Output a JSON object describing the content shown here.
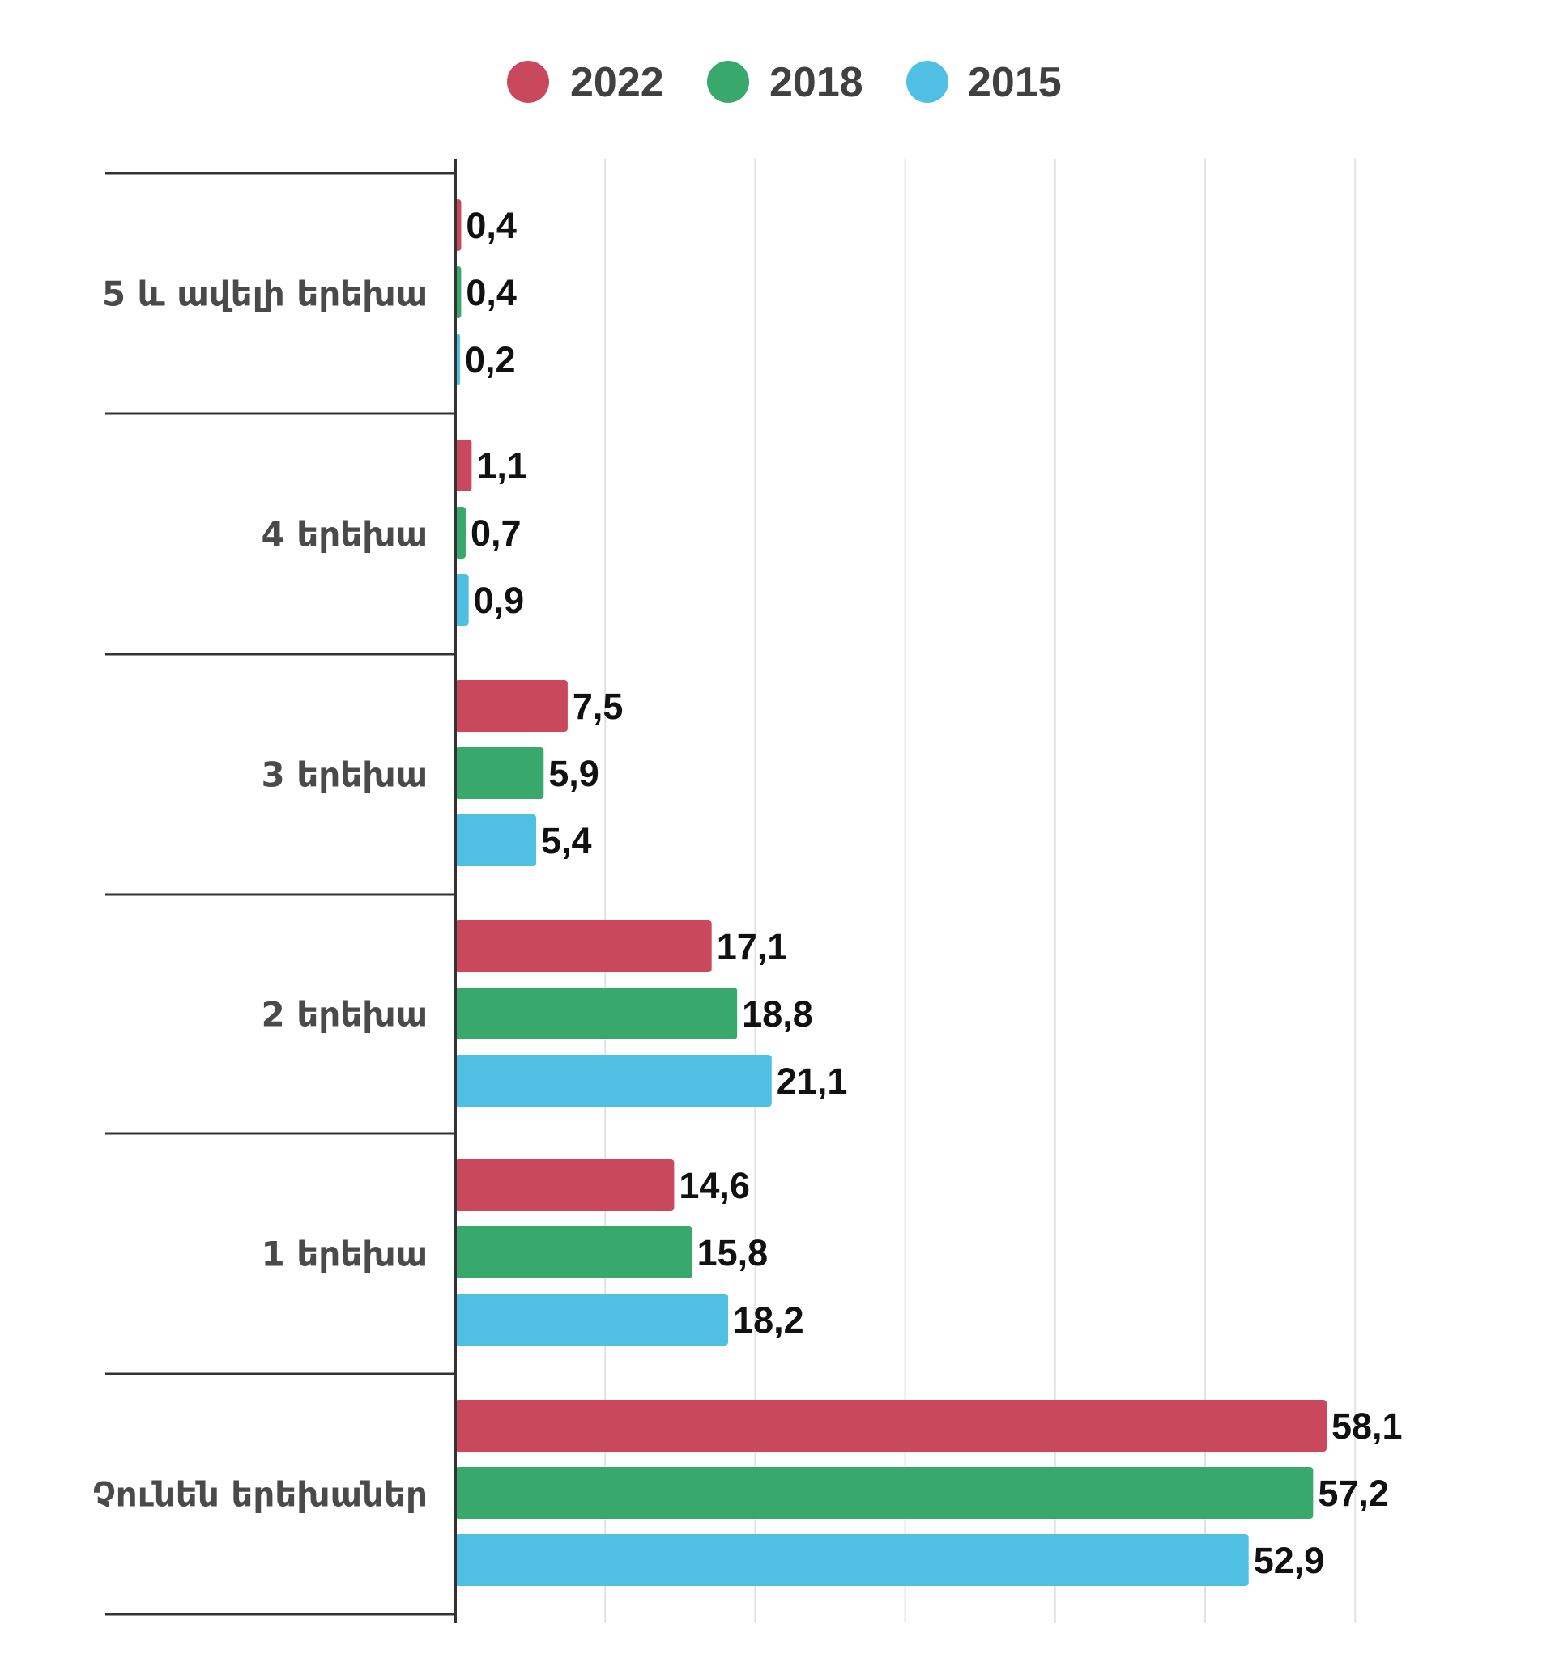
{
  "chart_data": {
    "type": "bar",
    "orientation": "horizontal",
    "title": "",
    "xlabel": "",
    "ylabel": "",
    "xlim": [
      0,
      60
    ],
    "grid": true,
    "legend_position": "top-center",
    "categories": [
      "5 և ավելի երեխա",
      "4 երեխա",
      "3 երեխա",
      "2 երեխա",
      "1 երեխա",
      "Չունեն երեխաներ"
    ],
    "series": [
      {
        "name": "2022",
        "color": "#c9485b",
        "values": [
          0.4,
          1.1,
          7.5,
          17.1,
          14.6,
          58.1
        ],
        "labels": [
          "0,4",
          "1,1",
          "7,5",
          "17,1",
          "14,6",
          "58,1"
        ]
      },
      {
        "name": "2018",
        "color": "#38a86c",
        "values": [
          0.4,
          0.7,
          5.9,
          18.8,
          15.8,
          57.2
        ],
        "labels": [
          "0,4",
          "0,7",
          "5,9",
          "18,8",
          "15,8",
          "57,2"
        ]
      },
      {
        "name": "2015",
        "color": "#4fc0e4",
        "values": [
          0.2,
          0.9,
          5.4,
          21.1,
          18.2,
          52.9
        ],
        "labels": [
          "0,2",
          "0,9",
          "5,4",
          "21,1",
          "18,2",
          "52,9"
        ]
      }
    ]
  }
}
